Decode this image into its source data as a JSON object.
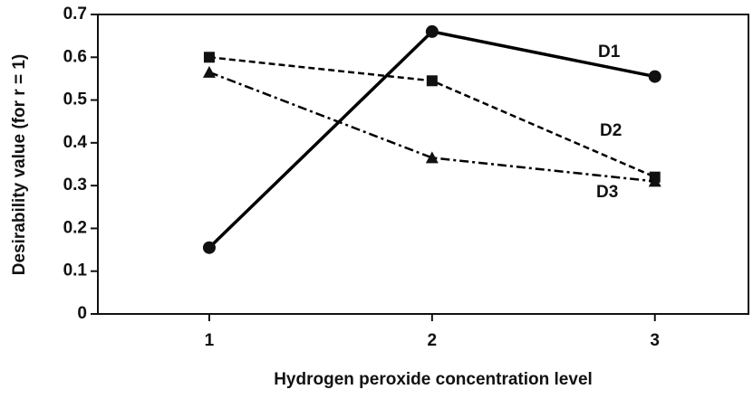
{
  "chart_data": {
    "type": "line",
    "xlabel": "Hydrogen peroxide concentration level",
    "ylabel": "Desirability value (for r = 1)",
    "x": [
      1,
      2,
      3
    ],
    "series": [
      {
        "name": "D1",
        "color": "#000000",
        "marker": "circle",
        "dash": "solid",
        "values": [
          0.155,
          0.66,
          0.555
        ]
      },
      {
        "name": "D2",
        "color": "#000000",
        "marker": "square",
        "dash": "dashed",
        "values": [
          0.6,
          0.545,
          0.32
        ]
      },
      {
        "name": "D3",
        "color": "#000000",
        "marker": "triangle",
        "dash": "dashdot",
        "values": [
          0.565,
          0.365,
          0.31
        ]
      }
    ],
    "xlim": [
      0.5,
      3.42
    ],
    "xticks": [
      1,
      2,
      3
    ],
    "ylim": [
      0,
      0.7
    ],
    "yticks": [
      0,
      0.1,
      0.2,
      0.3,
      0.4,
      0.5,
      0.6,
      0.7
    ],
    "grid": false
  }
}
